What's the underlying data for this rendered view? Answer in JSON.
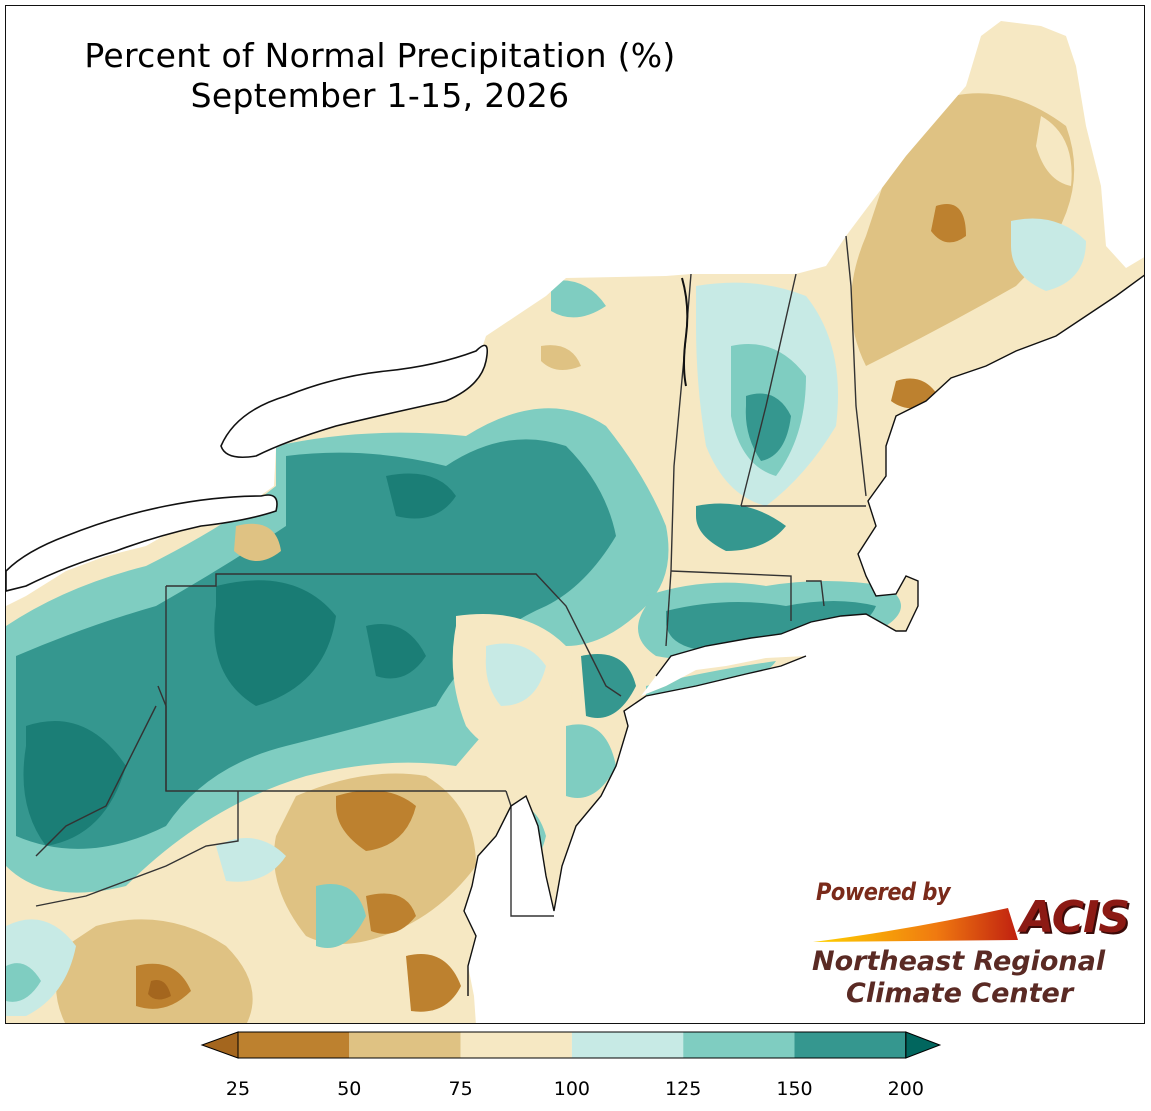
{
  "title": {
    "line1": "Percent of Normal Precipitation (%)",
    "line2": "September 1-15, 2026"
  },
  "logo": {
    "powered_by": "Powered by",
    "acis": "ACIS",
    "org_line1": "Northeast Regional",
    "org_line2": "Climate Center"
  },
  "legend": {
    "ticks": [
      "25",
      "50",
      "75",
      "100",
      "125",
      "150",
      "200"
    ],
    "colors": [
      "#bd812f",
      "#dfc283",
      "#f6e8c3",
      "#c7eae5",
      "#7fcdc1",
      "#35978f"
    ],
    "under_color": "#a4661e",
    "over_color": "#01665e",
    "extend": "both"
  },
  "map_colors": {
    "land_base": "#f6e8c3",
    "lake": "#ffffff",
    "ocean": "#ffffff",
    "state_border": "#333333",
    "county_border": "#9aa6a4"
  },
  "regions_shown": [
    "Maine",
    "New Hampshire",
    "Vermont",
    "Massachusetts",
    "Rhode Island",
    "Connecticut",
    "New York",
    "New Jersey",
    "Pennsylvania",
    "Delaware",
    "Maryland",
    "West Virginia",
    "Virginia",
    "Ohio"
  ]
}
